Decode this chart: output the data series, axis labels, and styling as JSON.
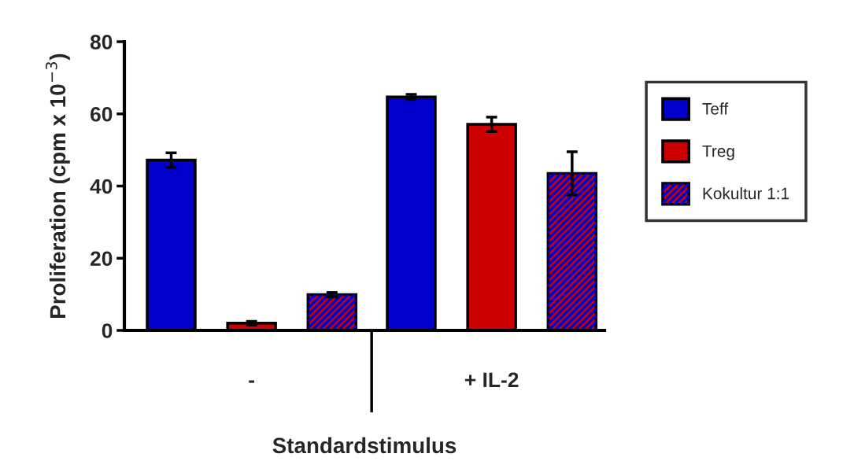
{
  "chart_data": {
    "type": "bar",
    "xlabel": "Standardstimulus",
    "ylabel": "Proliferation (cpm x 10$^{−3}$)",
    "categories": [
      "-",
      "+ IL-2"
    ],
    "series": [
      {
        "name": "Teff",
        "color": "#0000cc",
        "values": [
          47.2,
          64.7
        ],
        "errors": [
          2,
          0.7
        ]
      },
      {
        "name": "Treg",
        "color": "#cc0000",
        "values": [
          2.0,
          57.1
        ],
        "errors": [
          0.5,
          2
        ]
      },
      {
        "name": "Kokultur 1:1",
        "color": "#cc0000",
        "values": [
          9.9,
          43.5
        ],
        "errors": [
          0.6,
          6
        ]
      }
    ],
    "ylim": [
      0,
      80
    ],
    "yticks": [
      0,
      20,
      40,
      60,
      80
    ],
    "grid": false,
    "legend": "right"
  }
}
